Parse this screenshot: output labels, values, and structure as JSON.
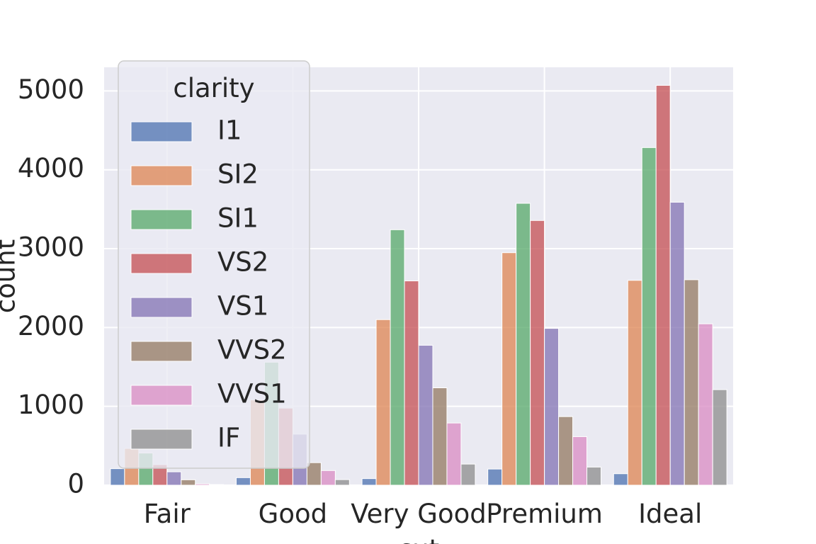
{
  "chart_data": {
    "type": "bar",
    "xlabel": "cut",
    "ylabel": "count",
    "ylim": [
      0,
      5300
    ],
    "yticks": [
      0,
      1000,
      2000,
      3000,
      4000,
      5000
    ],
    "grid": true,
    "categories": [
      "Fair",
      "Good",
      "Very Good",
      "Premium",
      "Ideal"
    ],
    "legend": {
      "title": "clarity",
      "placement": "upper-left"
    },
    "series": [
      {
        "name": "I1",
        "color": "#4c72b0",
        "values": [
          210,
          96,
          84,
          205,
          146
        ]
      },
      {
        "name": "SI2",
        "color": "#dd8452",
        "values": [
          466,
          1081,
          2100,
          2949,
          2598
        ]
      },
      {
        "name": "SI1",
        "color": "#55a868",
        "values": [
          408,
          1560,
          3240,
          3575,
          4282
        ]
      },
      {
        "name": "VS2",
        "color": "#c44e52",
        "values": [
          261,
          978,
          2591,
          3357,
          5071
        ]
      },
      {
        "name": "VS1",
        "color": "#8172b3",
        "values": [
          170,
          648,
          1775,
          1989,
          3589
        ]
      },
      {
        "name": "VVS2",
        "color": "#937860",
        "values": [
          69,
          286,
          1235,
          870,
          2606
        ]
      },
      {
        "name": "VVS1",
        "color": "#da8bc3",
        "values": [
          17,
          186,
          789,
          616,
          2047
        ]
      },
      {
        "name": "IF",
        "color": "#8c8c8c",
        "values": [
          9,
          71,
          268,
          230,
          1212
        ]
      }
    ]
  }
}
